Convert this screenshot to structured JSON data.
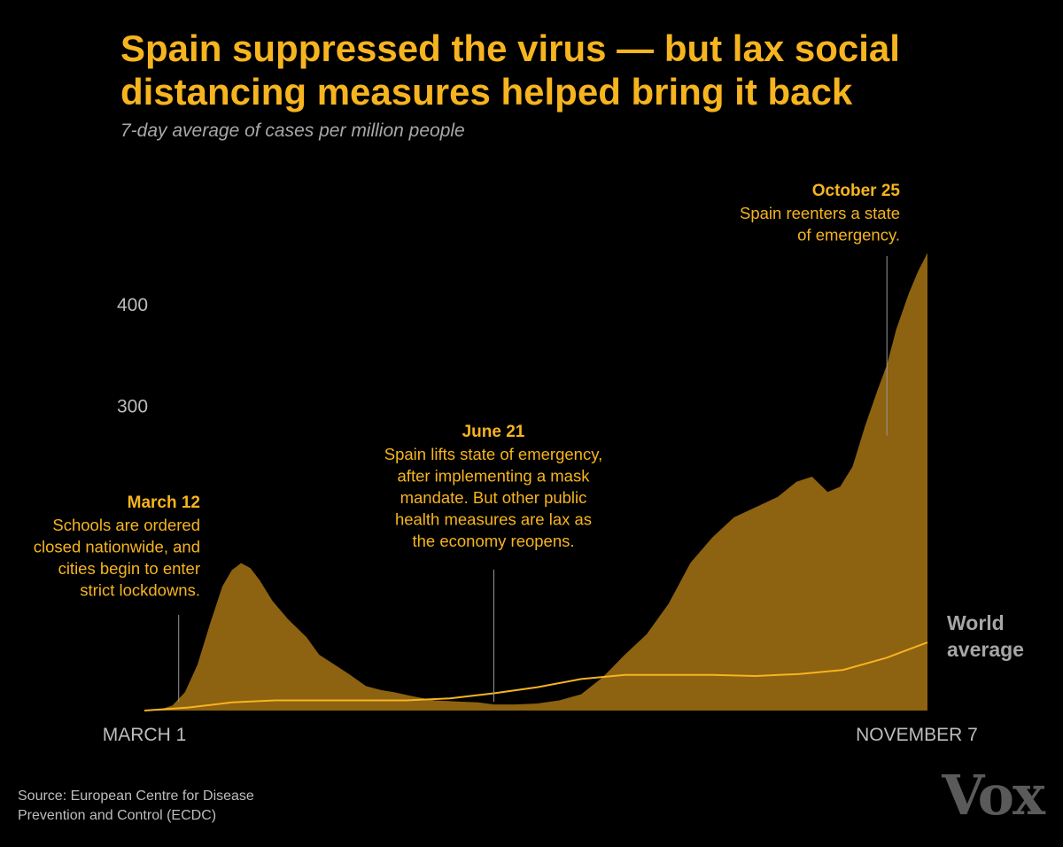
{
  "colors": {
    "background": "#000000",
    "accent": "#f6b41f",
    "area_fill": "#8d6211",
    "world_line": "#f6b41f",
    "axis_text": "#bdbdbd",
    "subtitle": "#a8a8a8",
    "logo": "#5a5a5a"
  },
  "source_text": "Source:  European Centre for Disease Prevention and Control (ECDC)",
  "logo_text": "Vox",
  "chart_data": {
    "type": "area",
    "title": "Spain suppressed the virus — but lax social distancing measures helped bring it back",
    "subtitle": "7-day average of cases per million people",
    "x_tick_labels": [
      "MARCH 1",
      "NOVEMBER 7"
    ],
    "x_range": [
      "2020-03-01",
      "2020-11-07"
    ],
    "y_ticks": [
      300,
      400
    ],
    "ylim": [
      0,
      460
    ],
    "grid": false,
    "legend": "inline",
    "series": [
      {
        "name": "",
        "style": "area",
        "points": [
          [
            "2020-03-01",
            0
          ],
          [
            "2020-03-06",
            1
          ],
          [
            "2020-03-10",
            5
          ],
          [
            "2020-03-14",
            18
          ],
          [
            "2020-03-18",
            45
          ],
          [
            "2020-03-22",
            85
          ],
          [
            "2020-03-26",
            122
          ],
          [
            "2020-03-29",
            138
          ],
          [
            "2020-04-01",
            145
          ],
          [
            "2020-04-04",
            140
          ],
          [
            "2020-04-07",
            128
          ],
          [
            "2020-04-11",
            108
          ],
          [
            "2020-04-16",
            90
          ],
          [
            "2020-04-22",
            72
          ],
          [
            "2020-04-26",
            55
          ],
          [
            "2020-05-01",
            45
          ],
          [
            "2020-05-06",
            35
          ],
          [
            "2020-05-11",
            24
          ],
          [
            "2020-05-16",
            20
          ],
          [
            "2020-05-20",
            18
          ],
          [
            "2020-05-26",
            14
          ],
          [
            "2020-06-02",
            10
          ],
          [
            "2020-06-09",
            9
          ],
          [
            "2020-06-16",
            8
          ],
          [
            "2020-06-21",
            6
          ],
          [
            "2020-06-28",
            6
          ],
          [
            "2020-07-05",
            7
          ],
          [
            "2020-07-12",
            10
          ],
          [
            "2020-07-19",
            16
          ],
          [
            "2020-07-26",
            33
          ],
          [
            "2020-08-02",
            55
          ],
          [
            "2020-08-09",
            75
          ],
          [
            "2020-08-16",
            105
          ],
          [
            "2020-08-23",
            145
          ],
          [
            "2020-08-30",
            170
          ],
          [
            "2020-09-06",
            190
          ],
          [
            "2020-09-13",
            200
          ],
          [
            "2020-09-20",
            210
          ],
          [
            "2020-09-26",
            225
          ],
          [
            "2020-10-01",
            230
          ],
          [
            "2020-10-06",
            215
          ],
          [
            "2020-10-10",
            220
          ],
          [
            "2020-10-14",
            240
          ],
          [
            "2020-10-18",
            280
          ],
          [
            "2020-10-22",
            315
          ],
          [
            "2020-10-25",
            340
          ],
          [
            "2020-10-28",
            375
          ],
          [
            "2020-11-01",
            410
          ],
          [
            "2020-11-04",
            432
          ],
          [
            "2020-11-07",
            450
          ]
        ]
      },
      {
        "name": "World average",
        "style": "line",
        "points": [
          [
            "2020-03-01",
            0
          ],
          [
            "2020-03-15",
            3
          ],
          [
            "2020-03-29",
            8
          ],
          [
            "2020-04-12",
            10
          ],
          [
            "2020-05-03",
            10
          ],
          [
            "2020-05-24",
            10
          ],
          [
            "2020-06-07",
            12
          ],
          [
            "2020-06-21",
            17
          ],
          [
            "2020-07-05",
            23
          ],
          [
            "2020-07-19",
            31
          ],
          [
            "2020-08-02",
            35
          ],
          [
            "2020-08-16",
            35
          ],
          [
            "2020-08-30",
            35
          ],
          [
            "2020-09-13",
            34
          ],
          [
            "2020-09-27",
            36
          ],
          [
            "2020-10-11",
            40
          ],
          [
            "2020-10-25",
            52
          ],
          [
            "2020-11-07",
            67
          ]
        ]
      }
    ],
    "annotations": [
      {
        "id": "march",
        "date": "2020-03-12",
        "title": "March 12",
        "lines": [
          "Schools are ordered",
          "closed nationwide, and",
          "cities begin to enter",
          "strict lockdowns."
        ],
        "align": "right"
      },
      {
        "id": "june",
        "date": "2020-06-21",
        "title": "June 21",
        "lines": [
          "Spain lifts state of emergency,",
          "after implementing a mask",
          "mandate. But other public",
          "health measures are lax as",
          "the economy reopens."
        ],
        "align": "center"
      },
      {
        "id": "october",
        "date": "2020-10-25",
        "title": "October 25",
        "lines": [
          "Spain reenters a state",
          "of emergency."
        ],
        "align": "right"
      }
    ],
    "world_label_lines": [
      "World",
      "average"
    ]
  }
}
